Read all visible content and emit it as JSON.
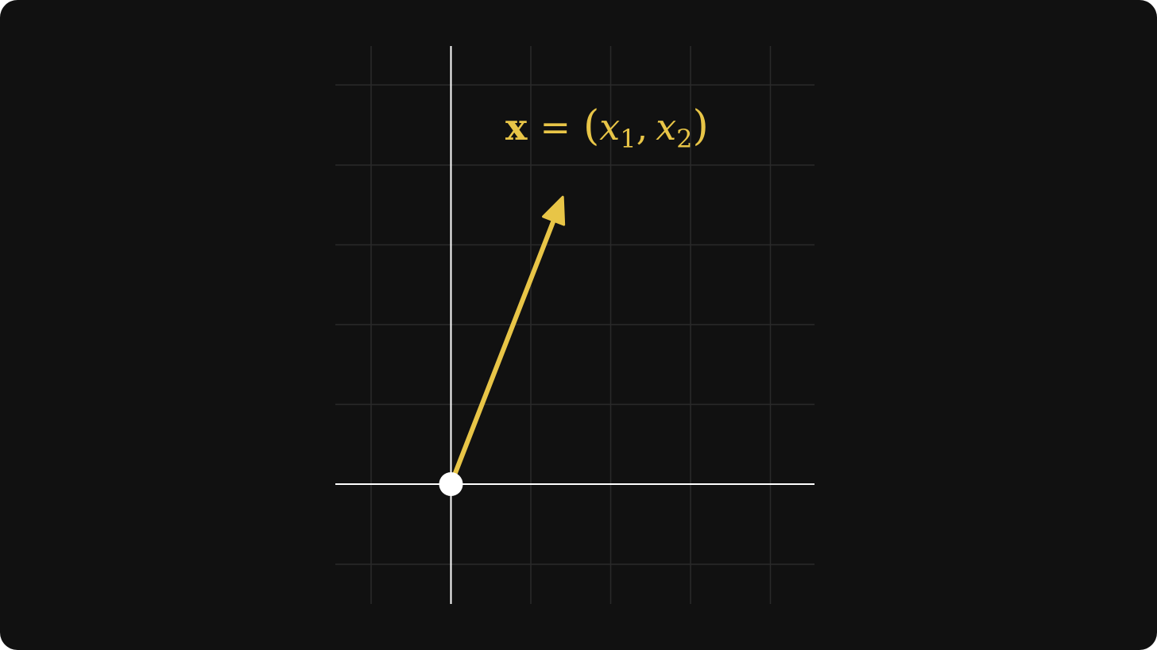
{
  "diagram": {
    "colors": {
      "background": "#111111",
      "grid": "#2a2a2a",
      "axes": "#ffffff",
      "vector": "#e8c547",
      "origin": "#ffffff"
    },
    "vector": {
      "x": 1.4,
      "y": 3.6
    },
    "label": {
      "vector_symbol": "x",
      "equals": "=",
      "open_paren": "(",
      "comp1_symbol": "x",
      "comp1_index": "1",
      "comma": ",",
      "comp2_symbol": "x",
      "comp2_index": "2",
      "close_paren": ")"
    }
  }
}
